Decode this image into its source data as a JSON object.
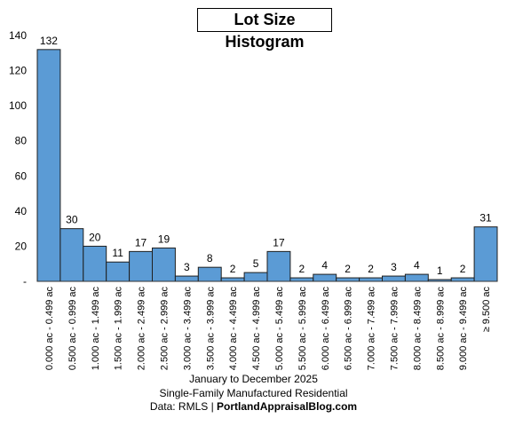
{
  "chart_data": {
    "type": "bar",
    "title": "Lot Size Histogram",
    "categories": [
      "0.000 ac - 0.499 ac",
      "0.500 ac - 0.999 ac",
      "1.000 ac - 1.499 ac",
      "1.500 ac - 1.999 ac",
      "2.000 ac - 2.499 ac",
      "2.500 ac - 2.999 ac",
      "3.000 ac - 3.499 ac",
      "3.500 ac - 3.999 ac",
      "4.000 ac - 4.499 ac",
      "4.500 ac - 4.999 ac",
      "5.000 ac - 5.499 ac",
      "5.500 ac - 5.999 ac",
      "6.000 ac - 6.499 ac",
      "6.500 ac - 6.999 ac",
      "7.000 ac - 7.499 ac",
      "7.500 ac - 7.999 ac",
      "8.000 ac - 8.499 ac",
      "8.500 ac - 8.999 ac",
      "9.000 ac - 9.499 ac",
      "≥ 9.500 ac"
    ],
    "values": [
      132,
      30,
      20,
      11,
      17,
      19,
      3,
      8,
      2,
      5,
      17,
      2,
      4,
      2,
      2,
      3,
      4,
      1,
      2,
      31
    ],
    "yticks": [
      "-",
      "20",
      "40",
      "60",
      "80",
      "100",
      "120",
      "140"
    ],
    "ylim": [
      0,
      140
    ],
    "grid": false,
    "bar_color": "#5b9bd5",
    "bar_edge": "#1f1f1f"
  },
  "footer": {
    "line1": "January to December 2025",
    "line2": "Single-Family Manufactured Residential",
    "line3_prefix": "Data: RMLS | ",
    "line3_bold": "PortlandAppraisalBlog.com"
  }
}
